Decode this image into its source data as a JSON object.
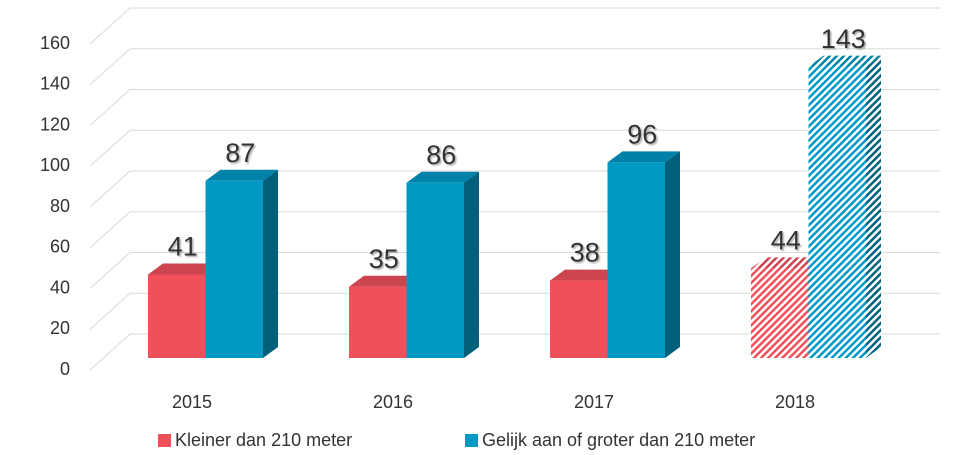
{
  "chart_data": {
    "type": "bar3d",
    "categories": [
      "2015",
      "2016",
      "2017",
      "2018"
    ],
    "series": [
      {
        "name": "Kleiner dan 210 meter",
        "color": "#f0505a",
        "values": [
          41,
          35,
          38,
          44
        ]
      },
      {
        "name": "Gelijk aan of groter dan 210 meter",
        "color": "#0099c6",
        "values": [
          87,
          86,
          96,
          143
        ]
      }
    ],
    "hatched": [
      false,
      false,
      false,
      true
    ],
    "ylim": [
      0,
      160
    ],
    "yticks": [
      0,
      20,
      40,
      60,
      80,
      100,
      120,
      140,
      160
    ],
    "grid": true,
    "legend": "bottom"
  }
}
